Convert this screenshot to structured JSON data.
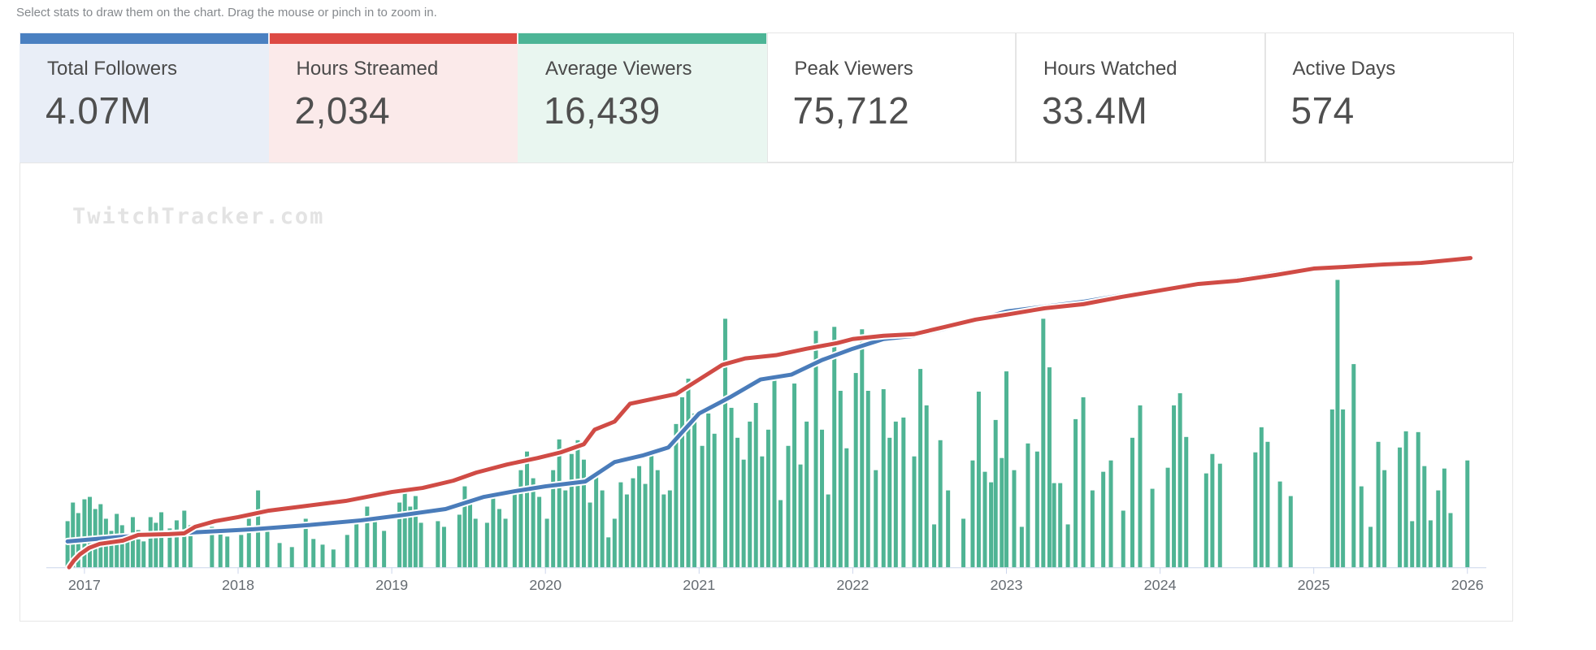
{
  "hint": "Select stats to draw them on the chart. Drag the mouse or pinch in to zoom in.",
  "watermark": "TwitchTracker.com",
  "stat_cards": [
    {
      "label": "Total Followers",
      "value": "4.07M",
      "accent": "#4a80c1",
      "bg": "#e9eef7"
    },
    {
      "label": "Hours Streamed",
      "value": "2,034",
      "accent": "#dd4a44",
      "bg": "#fbeaea"
    },
    {
      "label": "Average Viewers",
      "value": "16,439",
      "accent": "#4cb596",
      "bg": "#e9f6f0"
    },
    {
      "label": "Peak Viewers",
      "value": "75,712",
      "accent": null,
      "bg": "#ffffff"
    },
    {
      "label": "Hours Watched",
      "value": "33.4M",
      "accent": null,
      "bg": "#ffffff"
    },
    {
      "label": "Active Days",
      "value": "574",
      "accent": null,
      "bg": "#ffffff"
    }
  ],
  "chart_data": {
    "type": "mixed",
    "note": "No y-axis labels are shown in the screenshot; series values are heights above the baseline in screenshot pixels (800px-tall image). X values are decimal years.",
    "x_axis": {
      "labels": [
        "2017",
        "2018",
        "2019",
        "2020",
        "2021",
        "2022",
        "2023",
        "2024",
        "2025",
        "2026"
      ],
      "range": [
        2016.85,
        2026.3
      ]
    },
    "axis_color": "#ccd6eb",
    "series": [
      {
        "name": "Average Viewers",
        "type": "bar",
        "color": "#4fb494",
        "points": [
          [
            2016.89,
            57
          ],
          [
            2016.925,
            80
          ],
          [
            2016.96,
            67
          ],
          [
            2017.0,
            84
          ],
          [
            2017.035,
            87
          ],
          [
            2017.07,
            72
          ],
          [
            2017.105,
            78
          ],
          [
            2017.14,
            60
          ],
          [
            2017.175,
            45
          ],
          [
            2017.21,
            66
          ],
          [
            2017.245,
            52
          ],
          [
            2017.28,
            40
          ],
          [
            2017.315,
            62
          ],
          [
            2017.35,
            46
          ],
          [
            2017.385,
            32
          ],
          [
            2017.43,
            62
          ],
          [
            2017.465,
            55
          ],
          [
            2017.5,
            68
          ],
          [
            2017.555,
            48
          ],
          [
            2017.6,
            58
          ],
          [
            2017.65,
            70
          ],
          [
            2017.69,
            52
          ],
          [
            2017.83,
            50
          ],
          [
            2017.885,
            42
          ],
          [
            2017.93,
            38
          ],
          [
            2018.02,
            40
          ],
          [
            2018.07,
            60
          ],
          [
            2018.13,
            95
          ],
          [
            2018.19,
            45
          ],
          [
            2018.27,
            30
          ],
          [
            2018.35,
            25
          ],
          [
            2018.44,
            60
          ],
          [
            2018.49,
            35
          ],
          [
            2018.55,
            28
          ],
          [
            2018.62,
            22
          ],
          [
            2018.71,
            40
          ],
          [
            2018.77,
            55
          ],
          [
            2018.84,
            75
          ],
          [
            2018.89,
            60
          ],
          [
            2018.95,
            45
          ],
          [
            2019.05,
            80
          ],
          [
            2019.085,
            93
          ],
          [
            2019.12,
            75
          ],
          [
            2019.155,
            88
          ],
          [
            2019.19,
            55
          ],
          [
            2019.3,
            57
          ],
          [
            2019.34,
            50
          ],
          [
            2019.44,
            65
          ],
          [
            2019.475,
            100
          ],
          [
            2019.51,
            80
          ],
          [
            2019.545,
            60
          ],
          [
            2019.62,
            55
          ],
          [
            2019.66,
            90
          ],
          [
            2019.7,
            72
          ],
          [
            2019.74,
            60
          ],
          [
            2019.8,
            95
          ],
          [
            2019.84,
            120
          ],
          [
            2019.88,
            143
          ],
          [
            2019.92,
            110
          ],
          [
            2019.96,
            87
          ],
          [
            2020.01,
            60
          ],
          [
            2020.05,
            120
          ],
          [
            2020.09,
            158
          ],
          [
            2020.13,
            95
          ],
          [
            2020.17,
            140
          ],
          [
            2020.21,
            157
          ],
          [
            2020.25,
            133
          ],
          [
            2020.29,
            80
          ],
          [
            2020.33,
            118
          ],
          [
            2020.37,
            95
          ],
          [
            2020.41,
            37
          ],
          [
            2020.45,
            60
          ],
          [
            2020.49,
            105
          ],
          [
            2020.53,
            90
          ],
          [
            2020.57,
            110
          ],
          [
            2020.61,
            125
          ],
          [
            2020.65,
            103
          ],
          [
            2020.69,
            140
          ],
          [
            2020.73,
            120
          ],
          [
            2020.77,
            90
          ],
          [
            2020.81,
            95
          ],
          [
            2020.85,
            177
          ],
          [
            2020.89,
            210
          ],
          [
            2020.93,
            233
          ],
          [
            2020.97,
            190
          ],
          [
            2021.02,
            150
          ],
          [
            2021.06,
            190
          ],
          [
            2021.1,
            165
          ],
          [
            2021.17,
            307
          ],
          [
            2021.21,
            197
          ],
          [
            2021.25,
            160
          ],
          [
            2021.29,
            133
          ],
          [
            2021.33,
            180
          ],
          [
            2021.37,
            203
          ],
          [
            2021.41,
            137
          ],
          [
            2021.45,
            170
          ],
          [
            2021.49,
            237
          ],
          [
            2021.53,
            83
          ],
          [
            2021.58,
            150
          ],
          [
            2021.62,
            227
          ],
          [
            2021.66,
            127
          ],
          [
            2021.7,
            180
          ],
          [
            2021.76,
            292
          ],
          [
            2021.8,
            170
          ],
          [
            2021.84,
            90
          ],
          [
            2021.88,
            297
          ],
          [
            2021.92,
            218
          ],
          [
            2021.96,
            147
          ],
          [
            2022.02,
            240
          ],
          [
            2022.06,
            294
          ],
          [
            2022.1,
            218
          ],
          [
            2022.15,
            120
          ],
          [
            2022.2,
            220
          ],
          [
            2022.24,
            160
          ],
          [
            2022.28,
            180
          ],
          [
            2022.33,
            185
          ],
          [
            2022.4,
            137
          ],
          [
            2022.44,
            245
          ],
          [
            2022.48,
            200
          ],
          [
            2022.53,
            53
          ],
          [
            2022.57,
            157
          ],
          [
            2022.62,
            95
          ],
          [
            2022.72,
            60
          ],
          [
            2022.78,
            132
          ],
          [
            2022.82,
            217
          ],
          [
            2022.86,
            118
          ],
          [
            2022.9,
            105
          ],
          [
            2022.93,
            182
          ],
          [
            2022.97,
            135
          ],
          [
            2023.0,
            242
          ],
          [
            2023.05,
            120
          ],
          [
            2023.1,
            50
          ],
          [
            2023.14,
            153
          ],
          [
            2023.2,
            143
          ],
          [
            2023.24,
            307
          ],
          [
            2023.28,
            247
          ],
          [
            2023.31,
            104
          ],
          [
            2023.35,
            104
          ],
          [
            2023.4,
            53
          ],
          [
            2023.45,
            183
          ],
          [
            2023.5,
            210
          ],
          [
            2023.56,
            95
          ],
          [
            2023.63,
            118
          ],
          [
            2023.68,
            132
          ],
          [
            2023.76,
            70
          ],
          [
            2023.82,
            160
          ],
          [
            2023.87,
            200
          ],
          [
            2023.95,
            97
          ],
          [
            2024.05,
            123
          ],
          [
            2024.09,
            200
          ],
          [
            2024.13,
            215
          ],
          [
            2024.17,
            161
          ],
          [
            2024.3,
            116
          ],
          [
            2024.34,
            140
          ],
          [
            2024.39,
            128
          ],
          [
            2024.62,
            142
          ],
          [
            2024.66,
            173
          ],
          [
            2024.7,
            155
          ],
          [
            2024.78,
            106
          ],
          [
            2024.85,
            88
          ],
          [
            2025.12,
            195
          ],
          [
            2025.155,
            355
          ],
          [
            2025.19,
            195
          ],
          [
            2025.26,
            251
          ],
          [
            2025.31,
            100
          ],
          [
            2025.37,
            50
          ],
          [
            2025.42,
            155
          ],
          [
            2025.46,
            120
          ],
          [
            2025.56,
            148
          ],
          [
            2025.6,
            168
          ],
          [
            2025.64,
            57
          ],
          [
            2025.68,
            167
          ],
          [
            2025.72,
            125
          ],
          [
            2025.76,
            58
          ],
          [
            2025.81,
            95
          ],
          [
            2025.85,
            122
          ],
          [
            2025.89,
            67
          ],
          [
            2026.0,
            132
          ]
        ]
      },
      {
        "name": "Total Followers",
        "type": "line",
        "color": "#4a7cba",
        "points": [
          [
            2016.89,
            32
          ],
          [
            2017.2,
            37
          ],
          [
            2017.5,
            41
          ],
          [
            2017.8,
            44
          ],
          [
            2018.1,
            47
          ],
          [
            2018.45,
            52
          ],
          [
            2018.8,
            58
          ],
          [
            2019.05,
            64
          ],
          [
            2019.35,
            72
          ],
          [
            2019.6,
            87
          ],
          [
            2019.8,
            94
          ],
          [
            2020.0,
            100
          ],
          [
            2020.26,
            106
          ],
          [
            2020.45,
            130
          ],
          [
            2020.63,
            138
          ],
          [
            2020.8,
            148
          ],
          [
            2021.0,
            190
          ],
          [
            2021.2,
            210
          ],
          [
            2021.4,
            232
          ],
          [
            2021.6,
            238
          ],
          [
            2021.8,
            256
          ],
          [
            2022.0,
            270
          ],
          [
            2022.2,
            282
          ],
          [
            2022.4,
            286
          ],
          [
            2022.6,
            295
          ],
          [
            2022.8,
            305
          ],
          [
            2023.0,
            316
          ],
          [
            2023.25,
            322
          ],
          [
            2023.5,
            328
          ],
          [
            2023.75,
            336
          ],
          [
            2024.0,
            343
          ],
          [
            2024.25,
            350
          ],
          [
            2024.5,
            356
          ],
          [
            2024.75,
            363
          ],
          [
            2025.0,
            370
          ],
          [
            2025.2,
            372
          ],
          [
            2025.45,
            375
          ],
          [
            2025.7,
            377
          ],
          [
            2026.02,
            382
          ]
        ]
      },
      {
        "name": "Hours Streamed",
        "type": "line",
        "color": "#d04b45",
        "points": [
          [
            2016.9,
            0
          ],
          [
            2016.93,
            8
          ],
          [
            2016.97,
            16
          ],
          [
            2017.03,
            24
          ],
          [
            2017.1,
            29
          ],
          [
            2017.25,
            33
          ],
          [
            2017.35,
            40
          ],
          [
            2017.55,
            41
          ],
          [
            2017.65,
            42
          ],
          [
            2017.72,
            50
          ],
          [
            2017.85,
            57
          ],
          [
            2018.0,
            62
          ],
          [
            2018.2,
            70
          ],
          [
            2018.45,
            76
          ],
          [
            2018.7,
            82
          ],
          [
            2019.0,
            93
          ],
          [
            2019.2,
            98
          ],
          [
            2019.4,
            107
          ],
          [
            2019.55,
            117
          ],
          [
            2019.75,
            127
          ],
          [
            2019.95,
            135
          ],
          [
            2020.1,
            142
          ],
          [
            2020.25,
            152
          ],
          [
            2020.32,
            170
          ],
          [
            2020.45,
            180
          ],
          [
            2020.55,
            202
          ],
          [
            2020.7,
            208
          ],
          [
            2020.85,
            214
          ],
          [
            2021.0,
            232
          ],
          [
            2021.15,
            250
          ],
          [
            2021.3,
            258
          ],
          [
            2021.5,
            262
          ],
          [
            2021.7,
            270
          ],
          [
            2021.9,
            277
          ],
          [
            2022.0,
            282
          ],
          [
            2022.2,
            286
          ],
          [
            2022.4,
            288
          ],
          [
            2022.6,
            297
          ],
          [
            2022.8,
            306
          ],
          [
            2023.0,
            312
          ],
          [
            2023.25,
            320
          ],
          [
            2023.5,
            325
          ],
          [
            2023.75,
            334
          ],
          [
            2024.0,
            342
          ],
          [
            2024.25,
            350
          ],
          [
            2024.5,
            354
          ],
          [
            2024.75,
            361
          ],
          [
            2025.0,
            369
          ],
          [
            2025.2,
            371
          ],
          [
            2025.45,
            374
          ],
          [
            2025.7,
            376
          ],
          [
            2026.02,
            382
          ]
        ]
      }
    ]
  }
}
